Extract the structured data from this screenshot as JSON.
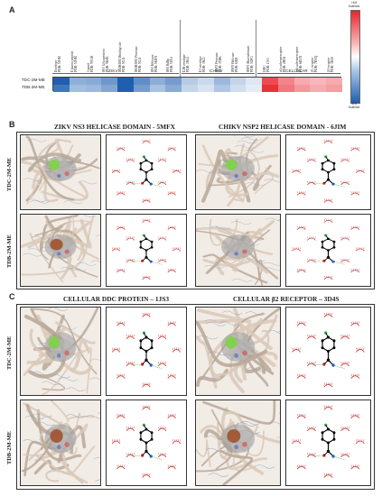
{
  "panelA": {
    "letter": "A",
    "columns": [
      {
        "l1": "Envelope",
        "l2": "PDB: 5JHM"
      },
      {
        "l1": "E fusion peptide",
        "l2": "PDB: 5JHM"
      },
      {
        "l1": "Capsid",
        "l2": "PDB: 5YGH"
      },
      {
        "l1": "NS1 Glycoprotein",
        "l2": "PDB: 5K6K"
      },
      {
        "l1": "NS2B/NS3 Binding site",
        "l2": "PDB: 5GJ4"
      },
      {
        "l1": "NS2B/NS3 Protease",
        "l2": "PDB: 5GJ4"
      },
      {
        "l1": "NS3 Helicase",
        "l2": "PDB: 5MFX"
      },
      {
        "l1": "NS5 RdRp",
        "l2": "PDB: 5U04"
      },
      {
        "l1": "E2B envelope",
        "l2": "PDB: 3N44"
      },
      {
        "l1": "E3 envelope",
        "l2": "PDB: 3N43"
      },
      {
        "l1": "NSP2 Protease",
        "l2": "PDB: 3TRK"
      },
      {
        "l1": "NSP2 Helicase",
        "l2": "PDB: 6JIM"
      },
      {
        "l1": "NSP3 Macrodomain",
        "l2": "PDB: 3GPG"
      },
      {
        "l1": "DDC",
        "l2": "PDB: 1JS3"
      },
      {
        "l1": "α1a adrenoreceptor",
        "l2": "PDB: 2RH1"
      },
      {
        "l1": "α2a adrenoreceptor",
        "l2": "PDB: 6KUX"
      },
      {
        "l1": "β1 receptor",
        "l2": "PDB: 7BVQ"
      },
      {
        "l1": "β2 receptor",
        "l2": "PDB: 3D4S"
      }
    ],
    "groups": [
      "ZIKV",
      "CHIKV",
      "CELLULAR"
    ],
    "rows": [
      {
        "name": "TDC-2M-ME",
        "values": [
          -7.2,
          -3.4,
          -3.6,
          -4.4,
          -8.2,
          -4.8,
          -3.5,
          -4.2,
          -2.2,
          -1.6,
          -3.0,
          -1.8,
          -1.0,
          5.6,
          3.8,
          2.6,
          2.2,
          2.6
        ]
      },
      {
        "name": "TDB-2M-ME",
        "values": [
          -5.8,
          -2.8,
          -3.0,
          -3.8,
          -7.2,
          -4.2,
          -2.6,
          -3.6,
          -1.8,
          -1.2,
          -2.4,
          -1.4,
          -0.8,
          6.4,
          4.2,
          3.2,
          2.6,
          3.0
        ]
      }
    ],
    "scale": {
      "max_label": "+6.8",
      "max_unit": "Kcal/mol",
      "min_label": "-6.8",
      "min_unit": "Kcal/mol",
      "max": 6.8,
      "min": -6.8
    },
    "colors": {
      "pos": "#e8242c",
      "neg": "#1f5fb0",
      "mid": "#ffffff"
    }
  },
  "panelB": {
    "letter": "B",
    "title_left": "ZIKV NS3 HELICASE DOMAIN - 5MFX",
    "title_right": "CHIKV NSP2 HELICASE DOMAIN - 6JIM",
    "row_labels": [
      "TDC-2M-ME",
      "TDB-2M-ME"
    ]
  },
  "panelC": {
    "letter": "C",
    "title_left": "CELLULAR DDC PROTEIN – 1JS3",
    "title_right": "CELLULAR β2 RECEPTOR – 3D4S",
    "row_labels": [
      "TDC-2M-ME",
      "TDB-2M-ME"
    ]
  }
}
